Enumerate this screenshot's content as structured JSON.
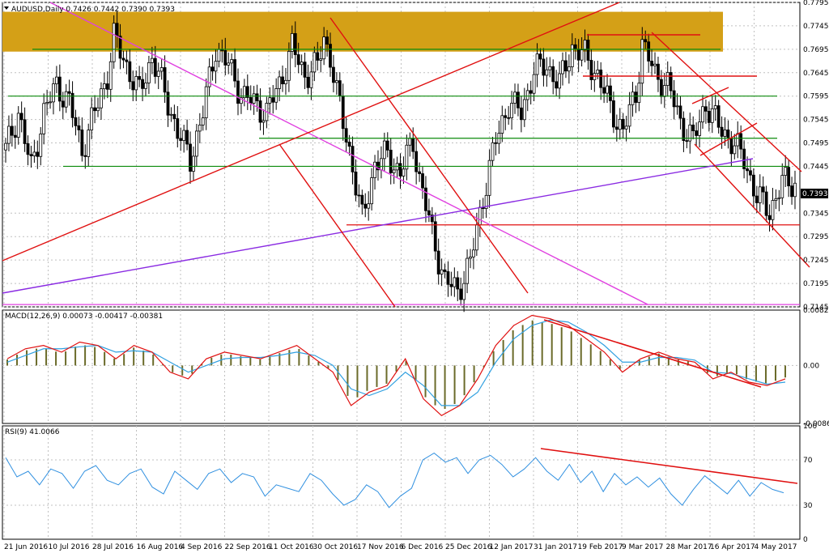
{
  "header": {
    "symbol_line": "AUDUSD,Daily 0.7426 0.7442 0.7390 0.7393"
  },
  "colors": {
    "bg": "#ffffff",
    "grid": "#c0c0c0",
    "candle": "#000000",
    "resistance_zone": "#d4a017",
    "green_lines": "#0a8a0a",
    "red_lines": "#e01010",
    "magenta_line": "#e040e0",
    "purple_line": "#8a2be2",
    "macd_hist": "#6b6b2a",
    "macd_signal_red": "#e01010",
    "macd_blue": "#30a0e0",
    "rsi_line": "#3090e0"
  },
  "chart_data": [
    {
      "type": "candlestick",
      "title": "AUDUSD,Daily",
      "last_price": "0.7393",
      "ohlc_header": {
        "open": 0.7426,
        "high": 0.7442,
        "low": 0.739,
        "close": 0.7393
      },
      "ylim": [
        0.7145,
        0.7795
      ],
      "y_ticks": [
        "0.7795",
        "0.7745",
        "0.7695",
        "0.7645",
        "0.7595",
        "0.7545",
        "0.7495",
        "0.7445",
        "0.7393",
        "0.7345",
        "0.7295",
        "0.7245",
        "0.7195",
        "0.7145"
      ],
      "x_ticks": [
        "21 Jun 2016",
        "10 Jul 2016",
        "28 Jul 2016",
        "16 Aug 2016",
        "4 Sep 2016",
        "22 Sep 2016",
        "11 Oct 2016",
        "30 Oct 2016",
        "17 Nov 2016",
        "6 Dec 2016",
        "25 Dec 2016",
        "12 Jan 2017",
        "31 Jan 2017",
        "19 Feb 2017",
        "9 Mar 2017",
        "28 Mar 2017",
        "16 Apr 2017",
        "4 May 2017"
      ],
      "close_path": [
        [
          0,
          0.748
        ],
        [
          4,
          0.756
        ],
        [
          8,
          0.744
        ],
        [
          12,
          0.756
        ],
        [
          16,
          0.762
        ],
        [
          20,
          0.758
        ],
        [
          24,
          0.748
        ],
        [
          28,
          0.756
        ],
        [
          32,
          0.764
        ],
        [
          34,
          0.772
        ],
        [
          38,
          0.766
        ],
        [
          42,
          0.76
        ],
        [
          46,
          0.768
        ],
        [
          50,
          0.76
        ],
        [
          54,
          0.752
        ],
        [
          58,
          0.746
        ],
        [
          62,
          0.756
        ],
        [
          66,
          0.77
        ],
        [
          70,
          0.766
        ],
        [
          74,
          0.76
        ],
        [
          78,
          0.758
        ],
        [
          82,
          0.756
        ],
        [
          86,
          0.762
        ],
        [
          90,
          0.77
        ],
        [
          94,
          0.764
        ],
        [
          98,
          0.766
        ],
        [
          100,
          0.772
        ],
        [
          102,
          0.768
        ],
        [
          104,
          0.76
        ],
        [
          108,
          0.748
        ],
        [
          112,
          0.733
        ],
        [
          116,
          0.745
        ],
        [
          120,
          0.747
        ],
        [
          124,
          0.743
        ],
        [
          128,
          0.75
        ],
        [
          130,
          0.742
        ],
        [
          134,
          0.73
        ],
        [
          138,
          0.72
        ],
        [
          142,
          0.718
        ],
        [
          146,
          0.724
        ],
        [
          150,
          0.738
        ],
        [
          154,
          0.75
        ],
        [
          158,
          0.758
        ],
        [
          162,
          0.756
        ],
        [
          166,
          0.765
        ],
        [
          170,
          0.766
        ],
        [
          174,
          0.762
        ],
        [
          178,
          0.77
        ],
        [
          182,
          0.768
        ],
        [
          186,
          0.764
        ],
        [
          190,
          0.757
        ],
        [
          194,
          0.752
        ],
        [
          198,
          0.76
        ],
        [
          200,
          0.771
        ],
        [
          204,
          0.764
        ],
        [
          208,
          0.762
        ],
        [
          212,
          0.754
        ],
        [
          216,
          0.75
        ],
        [
          220,
          0.758
        ],
        [
          224,
          0.753
        ],
        [
          228,
          0.75
        ],
        [
          232,
          0.746
        ],
        [
          236,
          0.738
        ],
        [
          240,
          0.735
        ],
        [
          244,
          0.741
        ]
      ],
      "levels": [
        {
          "kind": "zone",
          "from": 0.769,
          "to": 0.7775
        },
        {
          "kind": "horizontal",
          "color": "green",
          "value": 0.7695
        },
        {
          "kind": "horizontal",
          "color": "green",
          "value": 0.7595
        },
        {
          "kind": "horizontal",
          "color": "green",
          "value": 0.7505
        },
        {
          "kind": "horizontal",
          "color": "green",
          "value": 0.7445
        },
        {
          "kind": "horizontal",
          "color": "red",
          "value": 0.732
        },
        {
          "kind": "horizontal",
          "color": "magenta",
          "value": 0.715
        }
      ]
    },
    {
      "type": "line",
      "title": "MACD(12,26,9) 0.00073 -0.00417 -0.00381",
      "ylim": [
        -0.00868,
        0.00829
      ],
      "y_ticks": [
        "0.00829",
        "0.00",
        "-0.00868"
      ],
      "series": [
        {
          "values": [
            0.001,
            0.0025,
            0.003,
            0.002,
            0.0035,
            0.003,
            0.001,
            0.003,
            0.002,
            -0.001,
            -0.002,
            0.001,
            0.002,
            0.0015,
            0.001,
            0.002,
            0.003,
            0.001,
            -0.001,
            -0.006,
            -0.004,
            -0.003,
            0.001,
            -0.005,
            -0.0075,
            -0.006,
            -0.002,
            0.003,
            0.006,
            0.0075,
            0.007,
            0.006,
            0.004,
            0.002,
            -0.001,
            0.001,
            0.002,
            0.001,
            0.0005,
            -0.002,
            -0.001,
            -0.0025,
            -0.003,
            -0.002
          ]
        },
        {
          "values": [
            0.0005,
            0.0015,
            0.0025,
            0.0025,
            0.0028,
            0.003,
            0.002,
            0.0022,
            0.002,
            0.0005,
            -0.001,
            0.0,
            0.001,
            0.0012,
            0.0012,
            0.0015,
            0.002,
            0.0015,
            0.0,
            -0.0035,
            -0.0045,
            -0.0035,
            -0.001,
            -0.003,
            -0.006,
            -0.006,
            -0.004,
            0.0005,
            0.004,
            0.006,
            0.0068,
            0.0065,
            0.005,
            0.003,
            0.0005,
            0.0005,
            0.0012,
            0.0012,
            0.0008,
            -0.001,
            -0.0012,
            -0.002,
            -0.0028,
            -0.0025
          ]
        }
      ]
    },
    {
      "type": "line",
      "title": "RSI(9) 41.0066",
      "ylim": [
        0,
        100
      ],
      "y_ticks": [
        "100",
        "70",
        "30",
        "0"
      ],
      "series": [
        {
          "values": [
            72,
            55,
            60,
            48,
            62,
            58,
            45,
            60,
            65,
            52,
            48,
            58,
            62,
            46,
            40,
            60,
            52,
            44,
            58,
            62,
            50,
            58,
            55,
            38,
            48,
            45,
            42,
            58,
            52,
            40,
            30,
            35,
            48,
            42,
            28,
            38,
            45,
            70,
            76,
            68,
            72,
            58,
            70,
            74,
            66,
            55,
            62,
            72,
            60,
            52,
            66,
            50,
            60,
            42,
            58,
            48,
            55,
            46,
            54,
            40,
            30,
            44,
            56,
            48,
            40,
            52,
            38,
            50,
            44,
            41
          ]
        }
      ]
    }
  ]
}
